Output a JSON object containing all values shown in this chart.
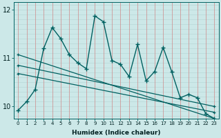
{
  "xlabel": "Humidex (Indice chaleur)",
  "ylabel": "",
  "bg_color": "#cce8e8",
  "grid_color_h": "#b8d8d8",
  "grid_color_v": "#d08888",
  "line_color": "#006060",
  "xlim": [
    -0.5,
    23.5
  ],
  "ylim": [
    9.75,
    12.15
  ],
  "yticks": [
    10,
    11,
    12
  ],
  "xticks": [
    0,
    1,
    2,
    3,
    4,
    5,
    6,
    7,
    8,
    9,
    10,
    11,
    12,
    13,
    14,
    15,
    16,
    17,
    18,
    19,
    20,
    21,
    22,
    23
  ],
  "series1_x": [
    0,
    1,
    2,
    3,
    4,
    5,
    6,
    7,
    8,
    9,
    10,
    11,
    12,
    13,
    14,
    15,
    16,
    17,
    18,
    19,
    20,
    21,
    22,
    23
  ],
  "series1_y": [
    9.92,
    10.1,
    10.35,
    11.2,
    11.63,
    11.4,
    11.07,
    10.9,
    10.78,
    11.87,
    11.75,
    10.95,
    10.87,
    10.62,
    11.28,
    10.53,
    10.72,
    11.22,
    10.72,
    10.18,
    10.25,
    10.18,
    9.85,
    9.75
  ],
  "line2_x": [
    0,
    23
  ],
  "line2_y": [
    11.07,
    9.75
  ],
  "line3_x": [
    0,
    23
  ],
  "line3_y": [
    10.85,
    10.0
  ],
  "line4_x": [
    0,
    23
  ],
  "line4_y": [
    10.68,
    9.88
  ]
}
